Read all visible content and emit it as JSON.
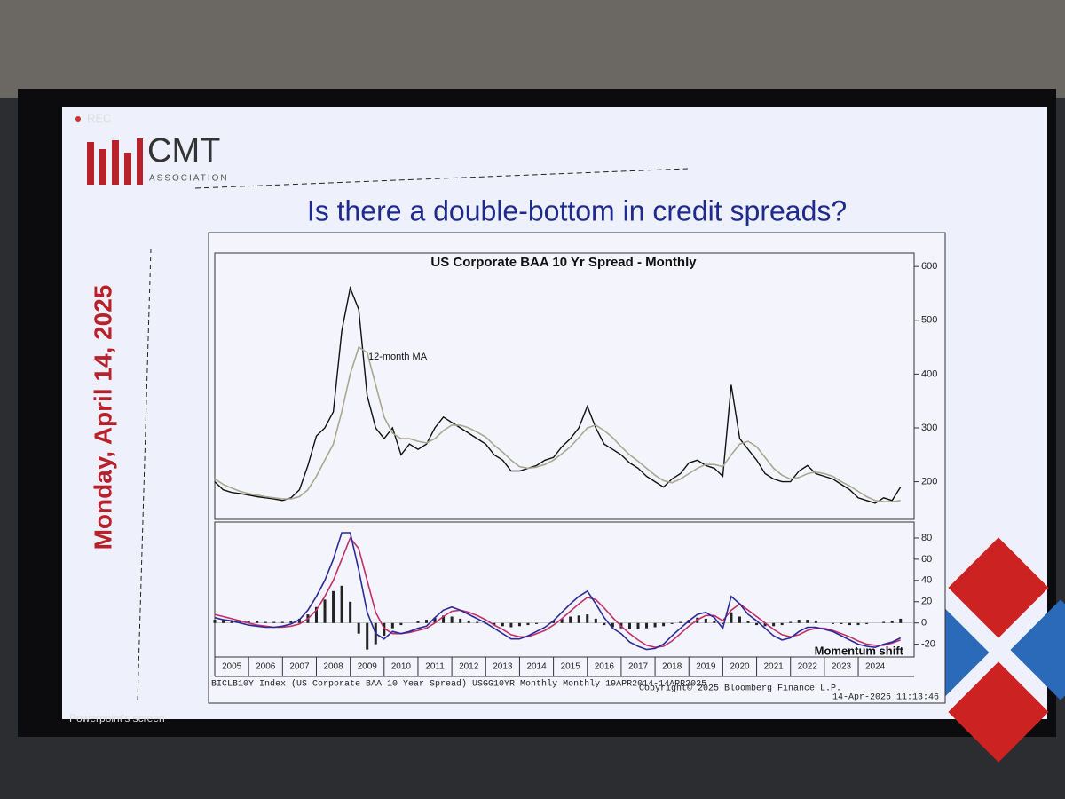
{
  "recording": "REC",
  "logo": {
    "name": "CMT",
    "subtitle": "ASSOCIATION"
  },
  "slide_title": "Is there a double-bottom in credit spreads?",
  "date": "Monday, April 14, 2025",
  "footer": {
    "source": "BICLB10Y Index (US Corporate BAA 10 Year Spread) USGG10YR Monthly Monthly 19APR2014-14APR2025",
    "copyright": "Copyright© 2025 Bloomberg Finance L.P.",
    "timestamp": "14-Apr-2025 11:13:46"
  },
  "screen_label": "Powerpoint's screen",
  "chart_data": [
    {
      "type": "line",
      "title": "US Corporate BAA 10 Yr Spread - Monthly",
      "annotations": [
        "12-month MA"
      ],
      "x": [
        2005,
        2005.25,
        2005.5,
        2005.75,
        2006,
        2006.25,
        2006.5,
        2006.75,
        2007,
        2007.25,
        2007.5,
        2007.75,
        2008,
        2008.25,
        2008.5,
        2008.75,
        2009,
        2009.25,
        2009.5,
        2009.75,
        2010,
        2010.25,
        2010.5,
        2010.75,
        2011,
        2011.25,
        2011.5,
        2011.75,
        2012,
        2012.25,
        2012.5,
        2012.75,
        2013,
        2013.25,
        2013.5,
        2013.75,
        2014,
        2014.25,
        2014.5,
        2014.75,
        2015,
        2015.25,
        2015.5,
        2015.75,
        2016,
        2016.25,
        2016.5,
        2016.75,
        2017,
        2017.25,
        2017.5,
        2017.75,
        2018,
        2018.25,
        2018.5,
        2018.75,
        2019,
        2019.25,
        2019.5,
        2019.75,
        2020,
        2020.25,
        2020.5,
        2020.75,
        2021,
        2021.25,
        2021.5,
        2021.75,
        2022,
        2022.25,
        2022.5,
        2022.75,
        2023,
        2023.25,
        2023.5,
        2023.75,
        2024,
        2024.25,
        2024.5,
        2024.75,
        2025,
        2025.25
      ],
      "xlim": [
        2005,
        2025.65
      ],
      "ylim": [
        130,
        625
      ],
      "yticks": [
        200,
        300,
        400,
        500,
        600
      ],
      "series": [
        {
          "color": "#111111",
          "values": [
            200,
            185,
            180,
            178,
            175,
            172,
            170,
            168,
            165,
            170,
            185,
            230,
            285,
            300,
            330,
            480,
            560,
            520,
            360,
            300,
            280,
            300,
            250,
            270,
            260,
            270,
            300,
            320,
            310,
            300,
            290,
            280,
            270,
            250,
            240,
            220,
            220,
            225,
            230,
            240,
            245,
            265,
            280,
            300,
            340,
            300,
            270,
            260,
            250,
            235,
            225,
            210,
            200,
            190,
            205,
            215,
            235,
            240,
            230,
            225,
            210,
            380,
            280,
            260,
            240,
            215,
            205,
            200,
            200,
            220,
            230,
            215,
            210,
            205,
            195,
            185,
            170,
            165,
            160,
            170,
            165,
            190
          ]
        },
        {
          "name": "12-month MA",
          "color": "#a8a890",
          "values": [
            205,
            195,
            188,
            182,
            178,
            175,
            172,
            170,
            168,
            168,
            172,
            185,
            210,
            240,
            270,
            330,
            400,
            450,
            440,
            380,
            320,
            290,
            280,
            280,
            275,
            272,
            280,
            295,
            305,
            305,
            300,
            292,
            283,
            268,
            255,
            240,
            228,
            225,
            227,
            232,
            240,
            252,
            265,
            282,
            300,
            305,
            295,
            282,
            265,
            250,
            238,
            225,
            212,
            202,
            198,
            205,
            215,
            225,
            232,
            232,
            228,
            250,
            270,
            275,
            265,
            245,
            225,
            212,
            205,
            208,
            215,
            218,
            215,
            210,
            200,
            192,
            182,
            172,
            165,
            163,
            163,
            165
          ]
        }
      ]
    },
    {
      "type": "line",
      "annotations": [
        "Momentum shift"
      ],
      "x": [
        2005,
        2005.25,
        2005.5,
        2005.75,
        2006,
        2006.25,
        2006.5,
        2006.75,
        2007,
        2007.25,
        2007.5,
        2007.75,
        2008,
        2008.25,
        2008.5,
        2008.75,
        2009,
        2009.25,
        2009.5,
        2009.75,
        2010,
        2010.25,
        2010.5,
        2010.75,
        2011,
        2011.25,
        2011.5,
        2011.75,
        2012,
        2012.25,
        2012.5,
        2012.75,
        2013,
        2013.25,
        2013.5,
        2013.75,
        2014,
        2014.25,
        2014.5,
        2014.75,
        2015,
        2015.25,
        2015.5,
        2015.75,
        2016,
        2016.25,
        2016.5,
        2016.75,
        2017,
        2017.25,
        2017.5,
        2017.75,
        2018,
        2018.25,
        2018.5,
        2018.75,
        2019,
        2019.25,
        2019.5,
        2019.75,
        2020,
        2020.25,
        2020.5,
        2020.75,
        2021,
        2021.25,
        2021.5,
        2021.75,
        2022,
        2022.25,
        2022.5,
        2022.75,
        2023,
        2023.25,
        2023.5,
        2023.75,
        2024,
        2024.25,
        2024.5,
        2024.75,
        2025,
        2025.25
      ],
      "xlim": [
        2005,
        2025.65
      ],
      "xticks": [
        2005,
        2006,
        2007,
        2008,
        2009,
        2010,
        2011,
        2012,
        2013,
        2014,
        2015,
        2016,
        2017,
        2018,
        2019,
        2020,
        2021,
        2022,
        2023,
        2024
      ],
      "ylim": [
        -32,
        95
      ],
      "yticks": [
        -20,
        0,
        20,
        40,
        60,
        80
      ],
      "series": [
        {
          "kind": "bar",
          "color": "#222222",
          "values": [
            3,
            3,
            2,
            2,
            2,
            2,
            1,
            1,
            1,
            2,
            4,
            8,
            15,
            22,
            30,
            35,
            20,
            -10,
            -25,
            -20,
            -12,
            -5,
            -2,
            0,
            2,
            3,
            5,
            7,
            6,
            4,
            2,
            1,
            -1,
            -2,
            -3,
            -4,
            -3,
            -2,
            -1,
            0,
            2,
            4,
            6,
            7,
            8,
            4,
            -2,
            -4,
            -5,
            -6,
            -6,
            -5,
            -4,
            -3,
            -1,
            1,
            3,
            5,
            4,
            2,
            -1,
            10,
            6,
            2,
            -2,
            -3,
            -3,
            -2,
            1,
            3,
            3,
            2,
            0,
            -1,
            -1,
            -2,
            -2,
            -1,
            0,
            1,
            2,
            4
          ]
        },
        {
          "kind": "line",
          "color": "#c0306a",
          "values": [
            8,
            6,
            4,
            2,
            0,
            -2,
            -3,
            -4,
            -4,
            -3,
            -1,
            4,
            12,
            25,
            40,
            60,
            80,
            70,
            40,
            10,
            -5,
            -10,
            -10,
            -9,
            -7,
            -5,
            0,
            6,
            11,
            12,
            10,
            7,
            3,
            -2,
            -6,
            -11,
            -13,
            -13,
            -10,
            -7,
            -2,
            4,
            11,
            18,
            24,
            22,
            14,
            5,
            -3,
            -10,
            -16,
            -21,
            -23,
            -22,
            -17,
            -10,
            -3,
            3,
            7,
            7,
            2,
            12,
            18,
            12,
            6,
            0,
            -6,
            -11,
            -13,
            -11,
            -7,
            -5,
            -5,
            -7,
            -10,
            -13,
            -17,
            -20,
            -21,
            -21,
            -19,
            -16
          ]
        },
        {
          "kind": "line",
          "color": "#2a2a9a",
          "values": [
            5,
            3,
            2,
            0,
            -2,
            -3,
            -4,
            -4,
            -3,
            -1,
            3,
            12,
            25,
            40,
            60,
            85,
            85,
            50,
            10,
            -10,
            -15,
            -8,
            -10,
            -8,
            -5,
            -3,
            5,
            12,
            15,
            12,
            8,
            4,
            0,
            -5,
            -10,
            -15,
            -15,
            -12,
            -8,
            -4,
            2,
            10,
            18,
            25,
            30,
            18,
            5,
            -5,
            -10,
            -18,
            -22,
            -25,
            -24,
            -20,
            -12,
            -5,
            2,
            8,
            10,
            5,
            -5,
            25,
            18,
            8,
            2,
            -5,
            -12,
            -16,
            -14,
            -8,
            -4,
            -4,
            -6,
            -8,
            -12,
            -16,
            -20,
            -22,
            -23,
            -20,
            -18,
            -14
          ]
        }
      ]
    }
  ]
}
